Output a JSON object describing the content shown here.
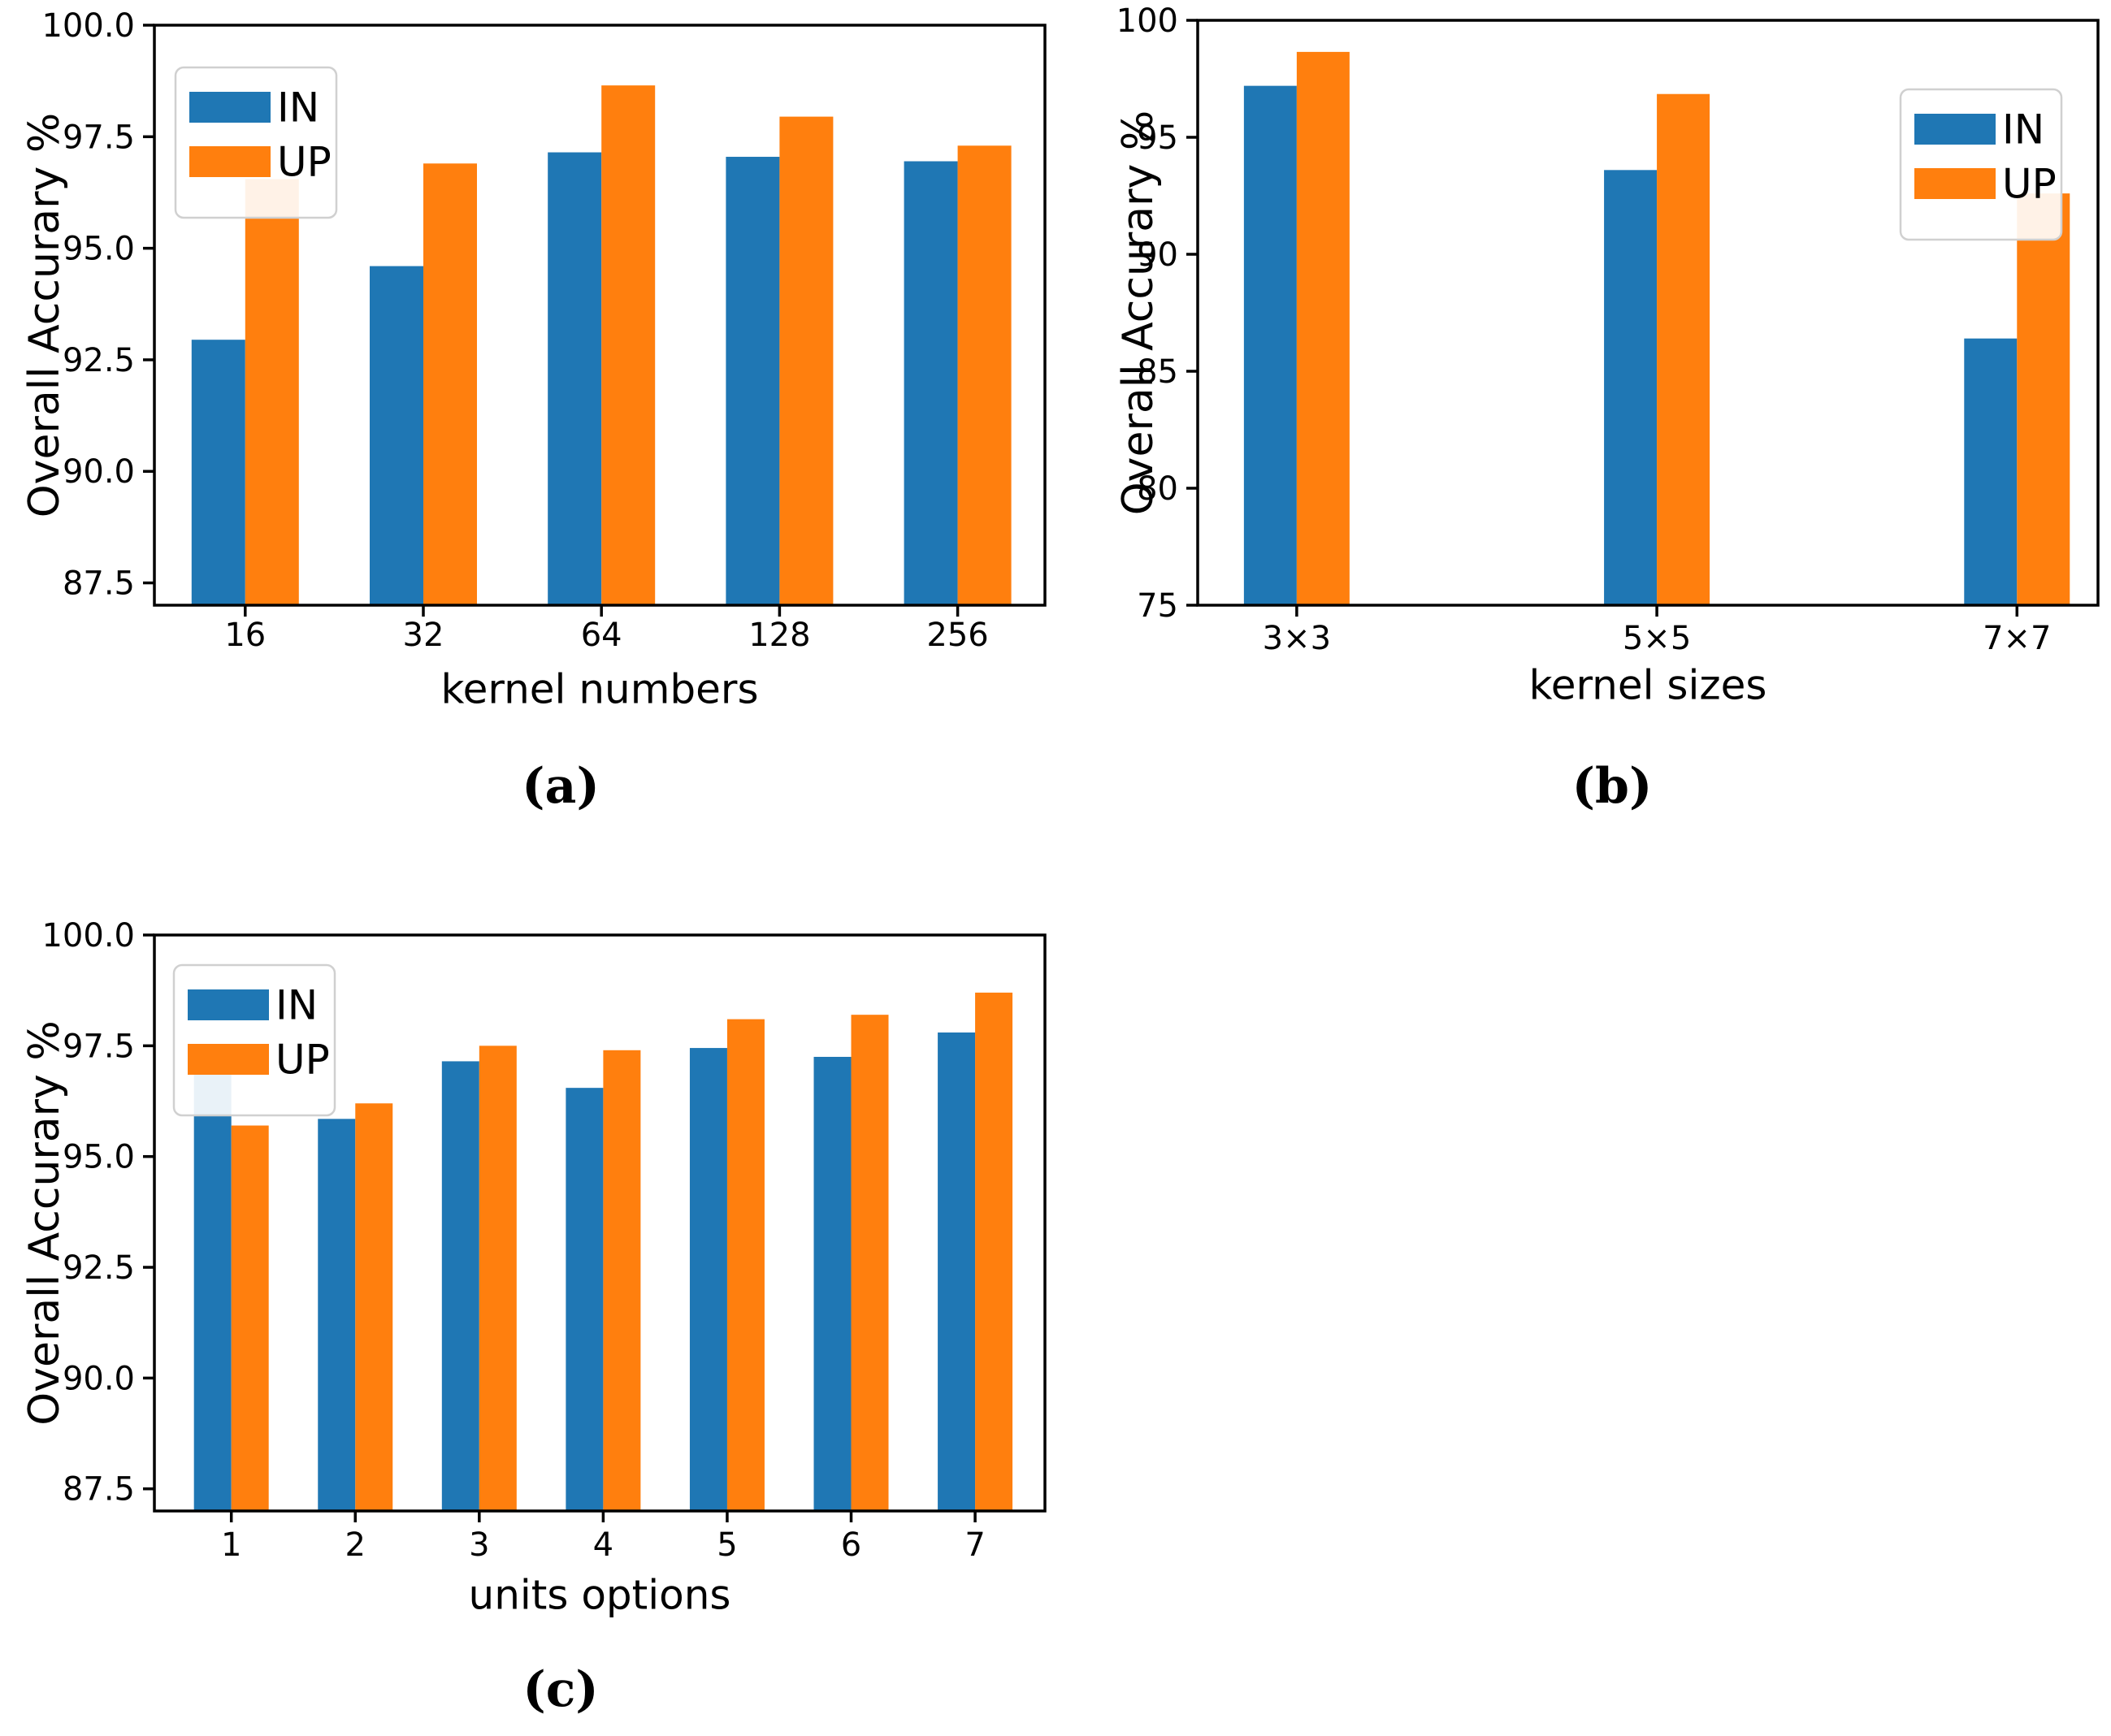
{
  "figure": {
    "background": "#ffffff",
    "axis_color": "#000000",
    "legend_border_color": "#d0d0d0",
    "series_colors": {
      "IN": "#1f77b4",
      "UP": "#ff7f0e"
    }
  },
  "chart_data": [
    {
      "id": "a",
      "type": "bar",
      "sublabel": "(a)",
      "xlabel": "kernel numbers",
      "ylabel": "Overall Accurary %",
      "categories": [
        "16",
        "32",
        "64",
        "128",
        "256"
      ],
      "series": [
        {
          "name": "IN",
          "color": "#1f77b4",
          "values": [
            92.95,
            94.6,
            97.15,
            97.05,
            96.95
          ]
        },
        {
          "name": "UP",
          "color": "#ff7f0e",
          "values": [
            96.55,
            96.9,
            98.65,
            97.95,
            97.3
          ]
        }
      ],
      "ylim": [
        87.0,
        100.0
      ],
      "yticks": [
        87.5,
        90.0,
        92.5,
        95.0,
        97.5,
        100.0
      ],
      "ytick_labels": [
        "87.5",
        "90.0",
        "92.5",
        "95.0",
        "97.5",
        "100.0"
      ],
      "legend": {
        "position": "top-left",
        "entries": [
          "IN",
          "UP"
        ]
      },
      "grid": false
    },
    {
      "id": "b",
      "type": "bar",
      "sublabel": "(b)",
      "xlabel": "kernel sizes",
      "ylabel": "Overall Accurary %",
      "categories": [
        "3×3",
        "5×5",
        "7×7"
      ],
      "series": [
        {
          "name": "IN",
          "color": "#1f77b4",
          "values": [
            97.2,
            93.6,
            86.4
          ]
        },
        {
          "name": "UP",
          "color": "#ff7f0e",
          "values": [
            98.65,
            96.85,
            92.6
          ]
        }
      ],
      "ylim": [
        75,
        100
      ],
      "yticks": [
        75,
        80,
        85,
        90,
        95,
        100
      ],
      "ytick_labels": [
        "75",
        "80",
        "85",
        "90",
        "95",
        "100"
      ],
      "legend": {
        "position": "top-right",
        "entries": [
          "IN",
          "UP"
        ]
      },
      "grid": false
    },
    {
      "id": "c",
      "type": "bar",
      "sublabel": "(c)",
      "xlabel": "units options",
      "ylabel": "Overall Accurary %",
      "categories": [
        "1",
        "2",
        "3",
        "4",
        "5",
        "6",
        "7"
      ],
      "series": [
        {
          "name": "IN",
          "color": "#1f77b4",
          "values": [
            97.0,
            95.85,
            97.15,
            96.55,
            97.45,
            97.25,
            97.8
          ]
        },
        {
          "name": "UP",
          "color": "#ff7f0e",
          "values": [
            95.7,
            96.2,
            97.5,
            97.4,
            98.1,
            98.2,
            98.7
          ]
        }
      ],
      "ylim": [
        87.0,
        100.0
      ],
      "yticks": [
        87.5,
        90.0,
        92.5,
        95.0,
        97.5,
        100.0
      ],
      "ytick_labels": [
        "87.5",
        "90.0",
        "92.5",
        "95.0",
        "97.5",
        "100.0"
      ],
      "legend": {
        "position": "top-left",
        "entries": [
          "IN",
          "UP"
        ]
      },
      "grid": false
    }
  ]
}
